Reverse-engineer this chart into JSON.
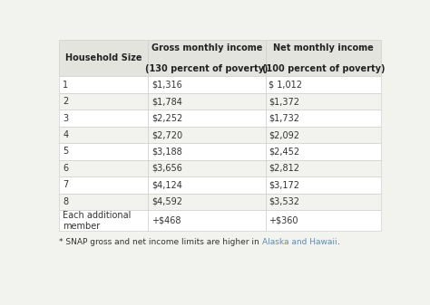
{
  "col_headers": [
    "Household Size",
    "Gross monthly income\n\n(130 percent of poverty)",
    "Net monthly income\n\n(100 percent of poverty)"
  ],
  "rows": [
    [
      "1",
      "$1,316",
      "$ 1,012"
    ],
    [
      "2",
      "$1,784",
      "$1,372"
    ],
    [
      "3",
      "$2,252",
      "$1,732"
    ],
    [
      "4",
      "$2,720",
      "$2,092"
    ],
    [
      "5",
      "$3,188",
      "$2,452"
    ],
    [
      "6",
      "$3,656",
      "$2,812"
    ],
    [
      "7",
      "$4,124",
      "$3,172"
    ],
    [
      "8",
      "$4,592",
      "$3,532"
    ],
    [
      "Each additional\nmember",
      "+$468",
      "+$360"
    ]
  ],
  "footnote_plain": "* SNAP gross and net income limits are higher in ",
  "footnote_link": "Alaska and Hawaii",
  "footnote_end": ".",
  "bg_color": "#f2f2ee",
  "header_bg": "#e4e4df",
  "row_bg_odd": "#ffffff",
  "row_bg_even": "#f2f2ee",
  "border_color": "#d0d0cc",
  "text_color": "#333333",
  "header_text_color": "#222222",
  "link_color": "#5b8db8",
  "header_font_size": 7.0,
  "cell_font_size": 7.0,
  "footnote_font_size": 6.5
}
